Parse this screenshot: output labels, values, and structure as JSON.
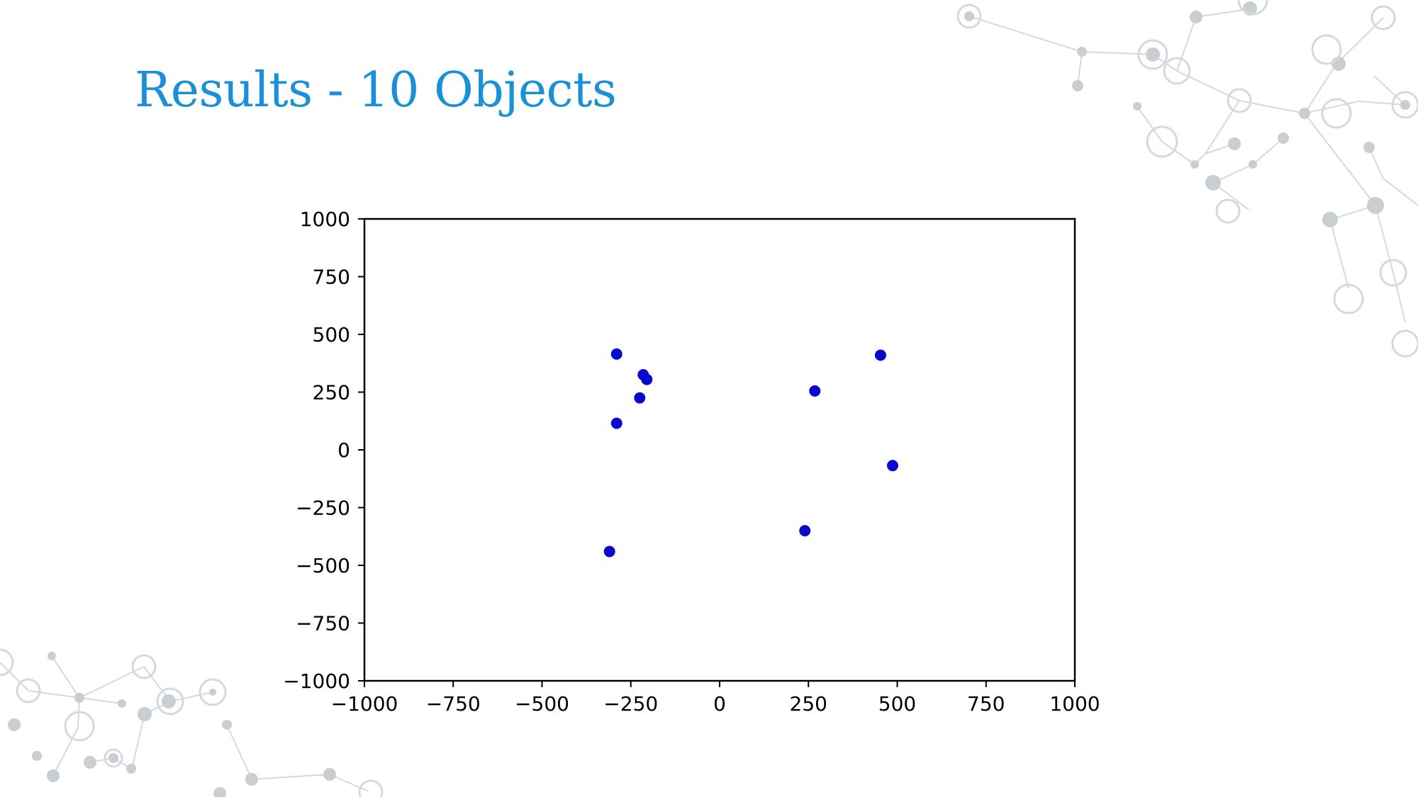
{
  "slide": {
    "title": "Results - 10 Objects"
  },
  "colors": {
    "title": "#1a90d9",
    "point": "#0a0acc",
    "axis": "#000000",
    "decoration": "#c7ccd1"
  },
  "chart_data": {
    "type": "scatter",
    "title": "",
    "xlabel": "",
    "ylabel": "",
    "xlim": [
      -1000,
      1000
    ],
    "ylim": [
      -1000,
      1000
    ],
    "grid": false,
    "x_ticks": [
      -1000,
      -750,
      -500,
      -250,
      0,
      250,
      500,
      750,
      1000
    ],
    "y_ticks": [
      -1000,
      -750,
      -500,
      -250,
      0,
      250,
      500,
      750,
      1000
    ],
    "x_tick_labels": [
      "−1000",
      "−750",
      "−500",
      "−250",
      "0",
      "250",
      "500",
      "750",
      "1000"
    ],
    "y_tick_labels": [
      "−1000",
      "−750",
      "−500",
      "−250",
      "0",
      "250",
      "500",
      "750",
      "1000"
    ],
    "series": [
      {
        "points": [
          {
            "x": -290,
            "y": 415
          },
          {
            "x": -215,
            "y": 325
          },
          {
            "x": -205,
            "y": 305
          },
          {
            "x": -225,
            "y": 225
          },
          {
            "x": -290,
            "y": 115
          },
          {
            "x": -310,
            "y": -440
          },
          {
            "x": 240,
            "y": -350
          },
          {
            "x": 268,
            "y": 255
          },
          {
            "x": 453,
            "y": 410
          },
          {
            "x": 487,
            "y": -68
          }
        ]
      }
    ]
  }
}
